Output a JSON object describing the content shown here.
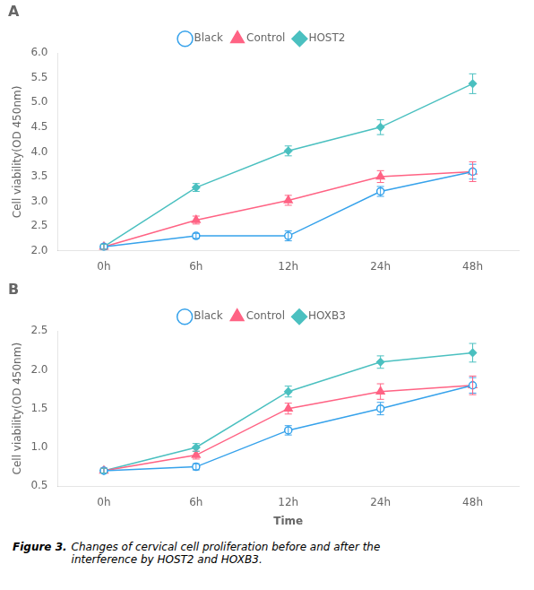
{
  "chart_data": [
    {
      "type": "line",
      "title": "A",
      "categories": [
        "0h",
        "6h",
        "12h",
        "24h",
        "48h"
      ],
      "series": [
        {
          "name": "Black",
          "marker": "open_circle",
          "line_style": "solid",
          "values": [
            2.08,
            2.3,
            2.3,
            3.2,
            3.6
          ],
          "errors": [
            0.05,
            0.05,
            0.1,
            0.1,
            0.15
          ]
        },
        {
          "name": "Control",
          "marker": "triangle",
          "line_style": "solid",
          "values": [
            2.08,
            2.62,
            3.02,
            3.5,
            3.6
          ],
          "errors": [
            0.05,
            0.08,
            0.1,
            0.12,
            0.2
          ]
        },
        {
          "name": "HOST2",
          "marker": "diamond",
          "line_style": "solid",
          "values": [
            2.08,
            3.28,
            4.02,
            4.5,
            5.38
          ],
          "errors": [
            0.05,
            0.08,
            0.1,
            0.15,
            0.2
          ]
        }
      ],
      "ylabel": "Cell viability(OD 450nm)",
      "ylim": [
        2.0,
        6.0
      ],
      "yticks": [
        {
          "value": 2.0,
          "label": "2.0"
        },
        2.5,
        {
          "value": 3.0,
          "label": "3.0"
        },
        3.5,
        {
          "value": 4.0,
          "label": "4.0"
        },
        4.5,
        {
          "value": 5.0,
          "label": "5.0"
        },
        5.5,
        {
          "value": 6.0,
          "label": "6.0"
        }
      ],
      "grid": false,
      "legend": "top"
    },
    {
      "type": "line",
      "title": "B",
      "categories": [
        "0h",
        "6h",
        "12h",
        "24h",
        "48h"
      ],
      "series": [
        {
          "name": "Black",
          "marker": "open_circle",
          "line_style": "solid",
          "values": [
            0.7,
            0.75,
            1.22,
            1.5,
            1.8
          ],
          "errors": [
            0.03,
            0.04,
            0.06,
            0.08,
            0.1
          ]
        },
        {
          "name": "Control",
          "marker": "triangle",
          "line_style": "solid",
          "values": [
            0.7,
            0.9,
            1.5,
            1.72,
            1.8
          ],
          "errors": [
            0.03,
            0.05,
            0.07,
            0.1,
            0.12
          ]
        },
        {
          "name": "HOXB3",
          "marker": "diamond",
          "line_style": "solid",
          "values": [
            0.7,
            1.0,
            1.72,
            2.1,
            2.22
          ],
          "errors": [
            0.03,
            0.05,
            0.07,
            0.08,
            0.12
          ]
        }
      ],
      "ylabel": "Cell viability(OD 450nm)",
      "xlabel": "Time",
      "ylim": [
        0.5,
        2.5
      ],
      "yticks": [
        0.5,
        {
          "value": 1.0,
          "label": "1.0"
        },
        1.5,
        {
          "value": 2.0,
          "label": "2.0"
        },
        2.5
      ],
      "grid": false,
      "legend": "top"
    }
  ],
  "caption": [
    "Figure 3.",
    "Changes of cervical cell proliferation before and after the\ninterference by HOST2 and HOXB3."
  ]
}
